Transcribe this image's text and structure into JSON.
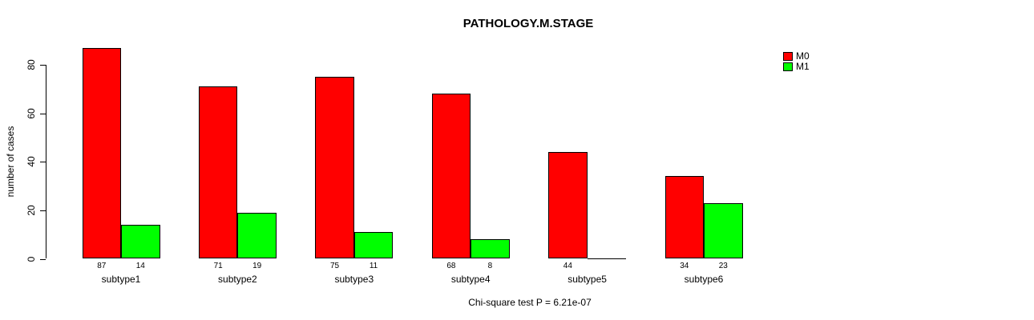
{
  "page": {
    "title": "PATHOLOGY.M.STAGE",
    "footer": "Chi-square test P = 6.21e-07"
  },
  "axes": {
    "y_label": "number of cases",
    "y_tick_labels": [
      "0",
      "20",
      "40",
      "60",
      "80"
    ]
  },
  "legend": {
    "items": [
      {
        "label": "M0",
        "color": "#FF0000"
      },
      {
        "label": "M1",
        "color": "#00FF00"
      }
    ]
  },
  "chart_data": {
    "type": "bar",
    "title": "PATHOLOGY.M.STAGE",
    "xlabel": "",
    "ylabel": "number of cases",
    "categories": [
      "subtype1",
      "subtype2",
      "subtype3",
      "subtype4",
      "subtype5",
      "subtype6"
    ],
    "series": [
      {
        "name": "M0",
        "color": "#FF0000",
        "values": [
          87,
          71,
          75,
          68,
          44,
          34
        ]
      },
      {
        "name": "M1",
        "color": "#00FF00",
        "values": [
          14,
          19,
          11,
          8,
          0,
          23
        ]
      }
    ],
    "yticks": [
      0,
      20,
      40,
      60,
      80
    ],
    "ylim": [
      0,
      87
    ],
    "grid": false,
    "legend_position": "top-right",
    "bar_value_labels": "below baseline under each bar; zero values drawn as baseline segment with no label",
    "annotation": "Chi-square test P = 6.21e-07"
  }
}
